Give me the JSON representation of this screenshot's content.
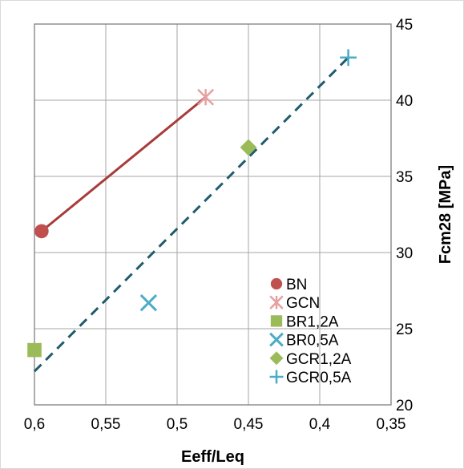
{
  "chart_data": {
    "type": "scatter",
    "title": "",
    "xlabel": "Eeff/Leq",
    "ylabel": "Fcm28  [MPa]",
    "x_reversed": true,
    "xlim": [
      0.35,
      0.6
    ],
    "ylim": [
      20,
      45
    ],
    "x_ticks": [
      0.6,
      0.55,
      0.5,
      0.45,
      0.4,
      0.35
    ],
    "x_tick_labels": [
      "0,6",
      "0,55",
      "0,5",
      "0,45",
      "0,4",
      "0,35"
    ],
    "y_ticks": [
      20,
      25,
      30,
      35,
      40,
      45
    ],
    "y_tick_labels": [
      "20",
      "25",
      "30",
      "35",
      "40",
      "45"
    ],
    "grid": true,
    "legend_position": "bottom-right",
    "series": [
      {
        "name": "BN",
        "marker": "circle",
        "color": "#c0504d",
        "points": [
          {
            "x": 0.595,
            "y": 31.4
          }
        ]
      },
      {
        "name": "GCN",
        "marker": "asterisk",
        "color": "#e6a0a0",
        "points": [
          {
            "x": 0.48,
            "y": 40.2
          }
        ]
      },
      {
        "name": "BR1,2A",
        "marker": "square",
        "color": "#9bbb59",
        "points": [
          {
            "x": 0.6,
            "y": 23.6
          }
        ]
      },
      {
        "name": "BR0,5A",
        "marker": "x",
        "color": "#4bacc6",
        "points": [
          {
            "x": 0.52,
            "y": 26.7
          }
        ]
      },
      {
        "name": "GCR1,2A",
        "marker": "diamond",
        "color": "#9bbb59",
        "points": [
          {
            "x": 0.45,
            "y": 36.9
          }
        ]
      },
      {
        "name": "GCR0,5A",
        "marker": "plus",
        "color": "#4bacc6",
        "points": [
          {
            "x": 0.38,
            "y": 42.8
          }
        ]
      }
    ],
    "trendlines": [
      {
        "style": "solid",
        "color": "#a83c3a",
        "from": {
          "x": 0.595,
          "y": 31.4
        },
        "to": {
          "x": 0.48,
          "y": 40.2
        }
      },
      {
        "style": "dashed",
        "color": "#1f5c6e",
        "from": {
          "x": 0.6,
          "y": 22.2
        },
        "to": {
          "x": 0.38,
          "y": 42.8
        }
      }
    ]
  }
}
